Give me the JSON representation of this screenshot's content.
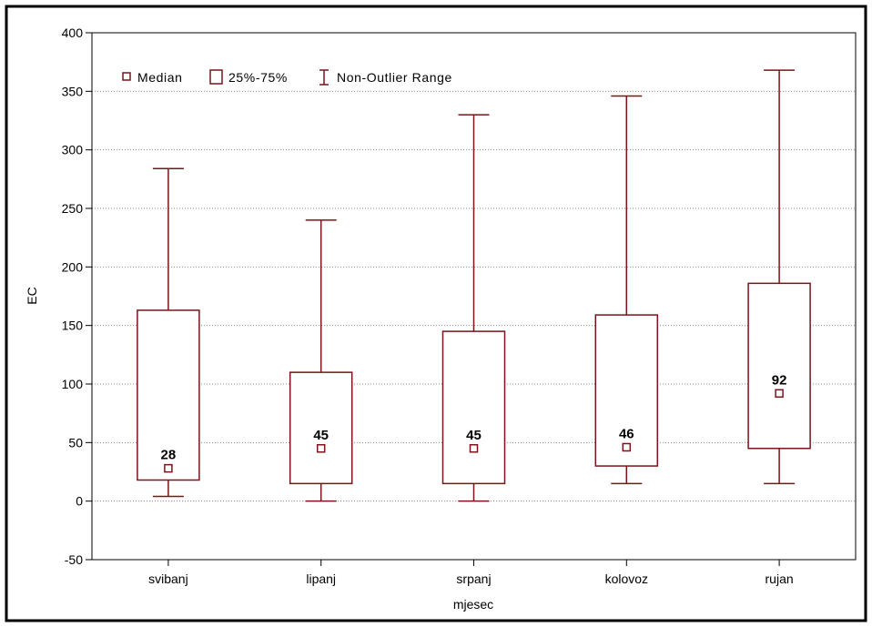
{
  "chart_data": {
    "type": "boxplot",
    "xlabel": "mjesec",
    "ylabel": "EC",
    "ylim": [
      -50,
      400
    ],
    "yticks": [
      -50,
      0,
      50,
      100,
      150,
      200,
      250,
      300,
      350,
      400
    ],
    "grid": true,
    "legend_position": "top-left",
    "legend": {
      "median": "Median",
      "box": "25%-75%",
      "whisker": "Non-Outlier Range"
    },
    "categories": [
      "svibanj",
      "lipanj",
      "srpanj",
      "kolovoz",
      "rujan"
    ],
    "boxes": [
      {
        "category": "svibanj",
        "min": 4,
        "q1": 18,
        "median": 28,
        "q3": 163,
        "max": 284,
        "label": "28"
      },
      {
        "category": "lipanj",
        "min": 0,
        "q1": 15,
        "median": 45,
        "q3": 110,
        "max": 240,
        "label": "45"
      },
      {
        "category": "srpanj",
        "min": 0,
        "q1": 15,
        "median": 45,
        "q3": 145,
        "max": 330,
        "label": "45"
      },
      {
        "category": "kolovoz",
        "min": 15,
        "q1": 30,
        "median": 46,
        "q3": 159,
        "max": 346,
        "label": "46"
      },
      {
        "category": "rujan",
        "min": 15,
        "q1": 45,
        "median": 92,
        "q3": 186,
        "max": 368,
        "label": "92"
      }
    ],
    "color": "#7a1418"
  }
}
